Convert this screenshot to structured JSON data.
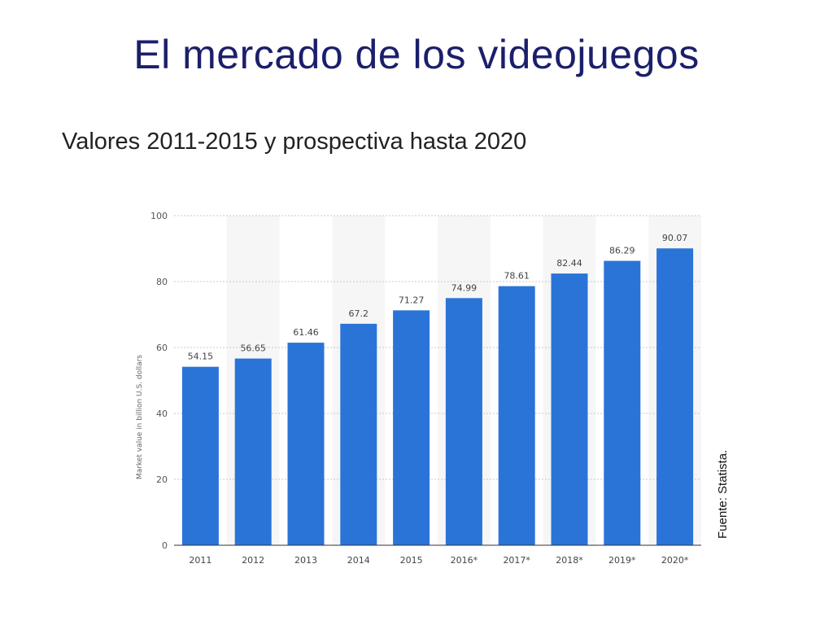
{
  "slide": {
    "title": "El mercado de los videojuegos",
    "subtitle": "Valores 2011-2015 y prospectiva hasta 2020",
    "source": "Fuente: Statista."
  },
  "colors": {
    "bar": "#2a74d8",
    "band": "#f6f6f6",
    "grid": "#c8c8c8",
    "title": "#1b1f6b"
  },
  "chart_data": {
    "type": "bar",
    "title": "",
    "xlabel": "",
    "ylabel": "Market value in billion U.S. dollars",
    "ylim": [
      0,
      100
    ],
    "yticks": [
      0,
      20,
      40,
      60,
      80,
      100
    ],
    "grid": true,
    "categories": [
      "2011",
      "2012",
      "2013",
      "2014",
      "2015",
      "2016*",
      "2017*",
      "2018*",
      "2019*",
      "2020*"
    ],
    "values": [
      54.15,
      56.65,
      61.46,
      67.2,
      71.27,
      74.99,
      78.61,
      82.44,
      86.29,
      90.07
    ],
    "data_labels": [
      "54.15",
      "56.65",
      "61.46",
      "67.2",
      "71.27",
      "74.99",
      "78.61",
      "82.44",
      "86.29",
      "90.07"
    ]
  }
}
